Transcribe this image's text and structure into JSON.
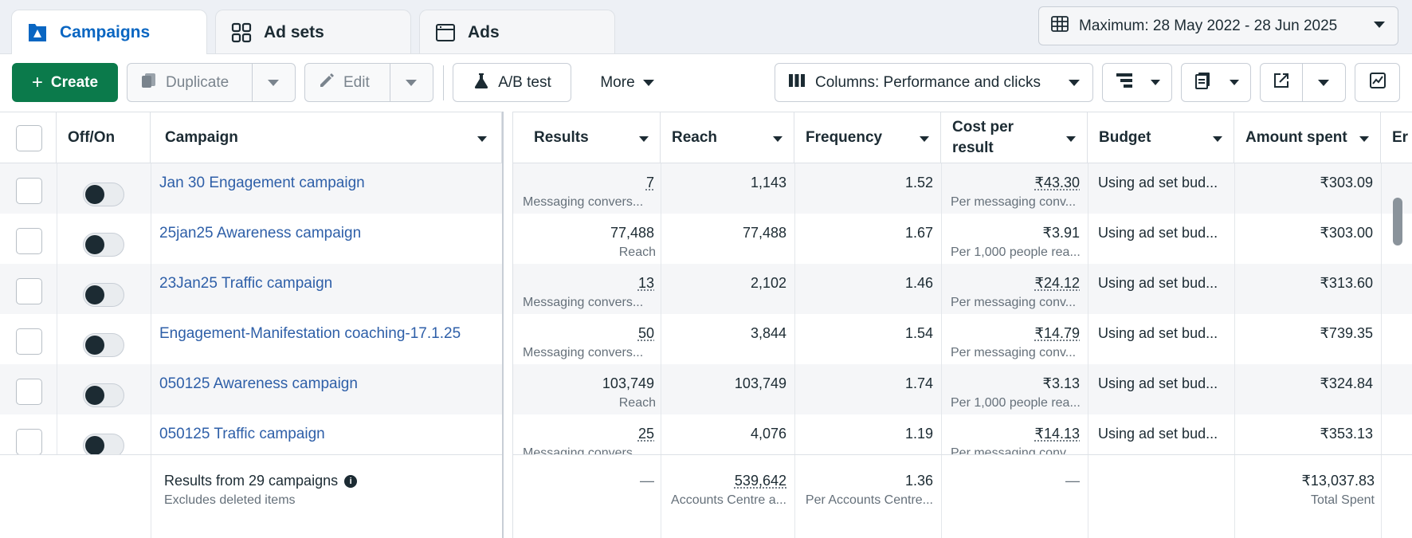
{
  "tabs": [
    {
      "label": "Campaigns",
      "icon": "campaign-flag-icon",
      "active": true
    },
    {
      "label": "Ad sets",
      "icon": "grid-icon",
      "active": false
    },
    {
      "label": "Ads",
      "icon": "ad-window-icon",
      "active": false
    }
  ],
  "date_range": {
    "label": "Maximum: 28 May 2022 - 28 Jun 2025",
    "icon": "calendar-grid-icon"
  },
  "toolbar": {
    "create_label": "Create",
    "duplicate_label": "Duplicate",
    "edit_label": "Edit",
    "ab_test_label": "A/B test",
    "more_label": "More",
    "columns_label": "Columns: Performance and clicks"
  },
  "columns": {
    "offon": "Off/On",
    "campaign": "Campaign",
    "results": "Results",
    "reach": "Reach",
    "frequency": "Frequency",
    "cost_per_result": "Cost per result",
    "budget": "Budget",
    "amount_spent": "Amount spent",
    "ends": "Er"
  },
  "rows": [
    {
      "name": "Jan 30 Engagement campaign",
      "results": "7",
      "results_sub": "Messaging convers...",
      "results_dotted": true,
      "reach": "1,143",
      "frequency": "1.52",
      "cpr": "₹43.30",
      "cpr_sub": "Per messaging conv...",
      "cpr_dotted": true,
      "budget": "Using ad set bud...",
      "spent": "₹303.09"
    },
    {
      "name": "25jan25 Awareness campaign",
      "results": "77,488",
      "results_sub": "Reach",
      "results_dotted": false,
      "reach": "77,488",
      "frequency": "1.67",
      "cpr": "₹3.91",
      "cpr_sub": "Per 1,000 people rea...",
      "cpr_dotted": false,
      "budget": "Using ad set bud...",
      "spent": "₹303.00"
    },
    {
      "name": "23Jan25 Traffic campaign",
      "results": "13",
      "results_sub": "Messaging convers...",
      "results_dotted": true,
      "reach": "2,102",
      "frequency": "1.46",
      "cpr": "₹24.12",
      "cpr_sub": "Per messaging conv...",
      "cpr_dotted": true,
      "budget": "Using ad set bud...",
      "spent": "₹313.60"
    },
    {
      "name": "Engagement-Manifestation coaching-17.1.25",
      "results": "50",
      "results_sub": "Messaging convers...",
      "results_dotted": true,
      "reach": "3,844",
      "frequency": "1.54",
      "cpr": "₹14.79",
      "cpr_sub": "Per messaging conv...",
      "cpr_dotted": true,
      "budget": "Using ad set bud...",
      "spent": "₹739.35"
    },
    {
      "name": "050125 Awareness campaign",
      "results": "103,749",
      "results_sub": "Reach",
      "results_dotted": false,
      "reach": "103,749",
      "frequency": "1.74",
      "cpr": "₹3.13",
      "cpr_sub": "Per 1,000 people rea...",
      "cpr_dotted": false,
      "budget": "Using ad set bud...",
      "spent": "₹324.84"
    },
    {
      "name": "050125 Traffic campaign",
      "results": "25",
      "results_sub": "Messaging convers...",
      "results_dotted": true,
      "reach": "4,076",
      "frequency": "1.19",
      "cpr": "₹14.13",
      "cpr_sub": "Per messaging conv...",
      "cpr_dotted": true,
      "budget": "Using ad set bud...",
      "spent": "₹353.13"
    }
  ],
  "totals": {
    "title": "Results from 29 campaigns",
    "subtitle": "Excludes deleted items",
    "results": "—",
    "reach": "539,642",
    "reach_sub": "Accounts Centre a...",
    "frequency": "1.36",
    "frequency_sub": "Per Accounts Centre...",
    "cpr": "—",
    "spent": "₹13,037.83",
    "spent_sub": "Total Spent"
  },
  "colors": {
    "accent": "#0a66c2",
    "create_green": "#0b7a4b",
    "link": "#2e5fa8"
  }
}
